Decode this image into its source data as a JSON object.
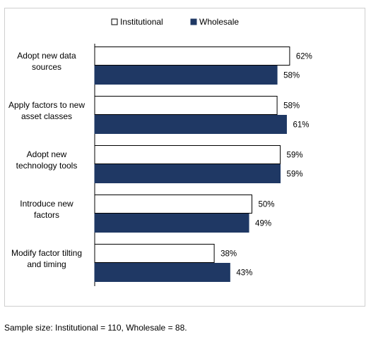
{
  "chart_data": {
    "type": "bar",
    "orientation": "horizontal",
    "categories": [
      [
        "Adopt new data",
        "sources"
      ],
      [
        "Apply factors to new",
        "asset classes"
      ],
      [
        "Adopt new",
        "technology tools"
      ],
      [
        "Introduce new",
        "factors"
      ],
      [
        "Modify factor tilting",
        "and timing"
      ]
    ],
    "series": [
      {
        "name": "Institutional",
        "values": [
          62,
          58,
          59,
          50,
          38
        ],
        "color": "#ffffff",
        "stroke": "#000000"
      },
      {
        "name": "Wholesale",
        "values": [
          58,
          61,
          59,
          49,
          43
        ],
        "color": "#1f3864",
        "stroke": "#1f3864"
      }
    ],
    "value_suffix": "%",
    "xlim": [
      0,
      100
    ],
    "legend_position": "top",
    "grid": false
  },
  "footnote": "Sample size: Institutional = 110, Wholesale = 88."
}
